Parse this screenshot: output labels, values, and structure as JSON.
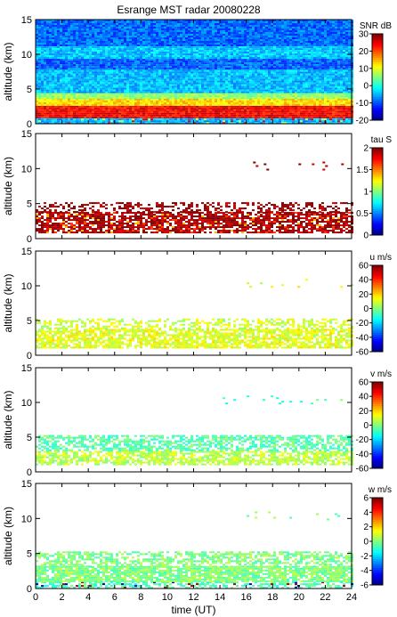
{
  "title": "Esrange MST radar 20080228",
  "chart_data": [
    {
      "type": "heatmap",
      "name": "snr",
      "ylabel": "altitude (km)",
      "xlim": [
        0,
        24
      ],
      "ylim": [
        0,
        15
      ],
      "yticks": [
        0,
        5,
        10,
        15
      ],
      "colorbar": {
        "label": "SNR dB",
        "range": [
          -20,
          30
        ],
        "ticks": [
          -20,
          -10,
          0,
          10,
          20,
          30
        ]
      },
      "bands": [
        {
          "alt": [
            0.0,
            1.0
          ],
          "level": 0.3,
          "coverage": 1.0,
          "flecks": [
            0.55,
            0.9
          ]
        },
        {
          "alt": [
            1.0,
            2.6
          ],
          "level": 0.88,
          "coverage": 1.0
        },
        {
          "alt": [
            2.6,
            3.6
          ],
          "level": 0.66,
          "coverage": 1.0
        },
        {
          "alt": [
            3.6,
            4.6
          ],
          "level": 0.52,
          "coverage": 1.0
        },
        {
          "alt": [
            4.6,
            8.0
          ],
          "level": 0.31,
          "coverage": 1.0
        },
        {
          "alt": [
            8.0,
            9.6
          ],
          "level": 0.22,
          "coverage": 1.0
        },
        {
          "alt": [
            9.6,
            11.4
          ],
          "level": 0.32,
          "coverage": 1.0
        },
        {
          "alt": [
            11.4,
            15.0
          ],
          "level": 0.23,
          "coverage": 1.0
        }
      ]
    },
    {
      "type": "heatmap",
      "name": "tau",
      "ylabel": "altitude (km)",
      "xlim": [
        0,
        24
      ],
      "ylim": [
        0,
        15
      ],
      "yticks": [
        0,
        5,
        10,
        15
      ],
      "colorbar": {
        "label": "tau S",
        "range": [
          0,
          2
        ],
        "ticks": [
          0,
          0.5,
          1,
          1.5,
          2
        ]
      },
      "bands": [
        {
          "alt": [
            1.0,
            3.8
          ],
          "level": 0.97,
          "coverage": 0.75,
          "flecks": [
            0.7,
            0.82
          ]
        },
        {
          "alt": [
            3.8,
            5.2
          ],
          "level": 0.97,
          "coverage": 0.45
        },
        {
          "alt": [
            9.8,
            11.0
          ],
          "level": 0.97,
          "coverage": 0.05,
          "xrange": [
            15.5,
            24
          ]
        }
      ]
    },
    {
      "type": "heatmap",
      "name": "u",
      "ylabel": "altitude (km)",
      "xlim": [
        0,
        24
      ],
      "ylim": [
        0,
        15
      ],
      "yticks": [
        0,
        5,
        10,
        15
      ],
      "colorbar": {
        "label": "u m/s",
        "range": [
          -60,
          60
        ],
        "ticks": [
          -60,
          -40,
          -20,
          0,
          20,
          40,
          60
        ]
      },
      "bands": [
        {
          "alt": [
            1.0,
            3.8
          ],
          "level": 0.6,
          "coverage": 0.78
        },
        {
          "alt": [
            3.8,
            5.3
          ],
          "level": 0.58,
          "coverage": 0.45
        },
        {
          "alt": [
            9.8,
            11.0
          ],
          "level": 0.6,
          "coverage": 0.04,
          "xrange": [
            14,
            24
          ]
        }
      ]
    },
    {
      "type": "heatmap",
      "name": "v",
      "ylabel": "altitude (km)",
      "xlim": [
        0,
        24
      ],
      "ylim": [
        0,
        15
      ],
      "yticks": [
        0,
        5,
        10,
        15
      ],
      "colorbar": {
        "label": "v m/s",
        "range": [
          -60,
          60
        ],
        "ticks": [
          -60,
          -40,
          -20,
          0,
          20,
          40,
          60
        ]
      },
      "bands": [
        {
          "alt": [
            1.0,
            3.0
          ],
          "level": 0.56,
          "coverage": 0.7
        },
        {
          "alt": [
            3.0,
            5.3
          ],
          "level": 0.46,
          "coverage": 0.6
        },
        {
          "alt": [
            9.8,
            11.0
          ],
          "level": 0.45,
          "coverage": 0.04,
          "xrange": [
            14,
            24
          ]
        }
      ]
    },
    {
      "type": "heatmap",
      "name": "w",
      "ylabel": "altitude (km)",
      "xlabel": "time (UT)",
      "xlim": [
        0,
        24
      ],
      "ylim": [
        0,
        15
      ],
      "yticks": [
        0,
        5,
        10,
        15
      ],
      "xticks": [
        0,
        2,
        4,
        6,
        8,
        10,
        12,
        14,
        16,
        18,
        20,
        22,
        24
      ],
      "colorbar": {
        "label": "w m/s",
        "range": [
          -6,
          6
        ],
        "ticks": [
          -6,
          -4,
          -2,
          0,
          2,
          4,
          6
        ]
      },
      "bands": [
        {
          "alt": [
            0.0,
            1.0
          ],
          "level": 0.45,
          "coverage": 0.55,
          "flecks": [
            0.1,
            0.95
          ]
        },
        {
          "alt": [
            1.0,
            3.2
          ],
          "level": 0.5,
          "coverage": 0.85
        },
        {
          "alt": [
            3.2,
            5.3
          ],
          "level": 0.5,
          "coverage": 0.55
        },
        {
          "alt": [
            9.8,
            11.0
          ],
          "level": 0.5,
          "coverage": 0.04,
          "xrange": [
            14,
            24
          ]
        }
      ]
    }
  ]
}
